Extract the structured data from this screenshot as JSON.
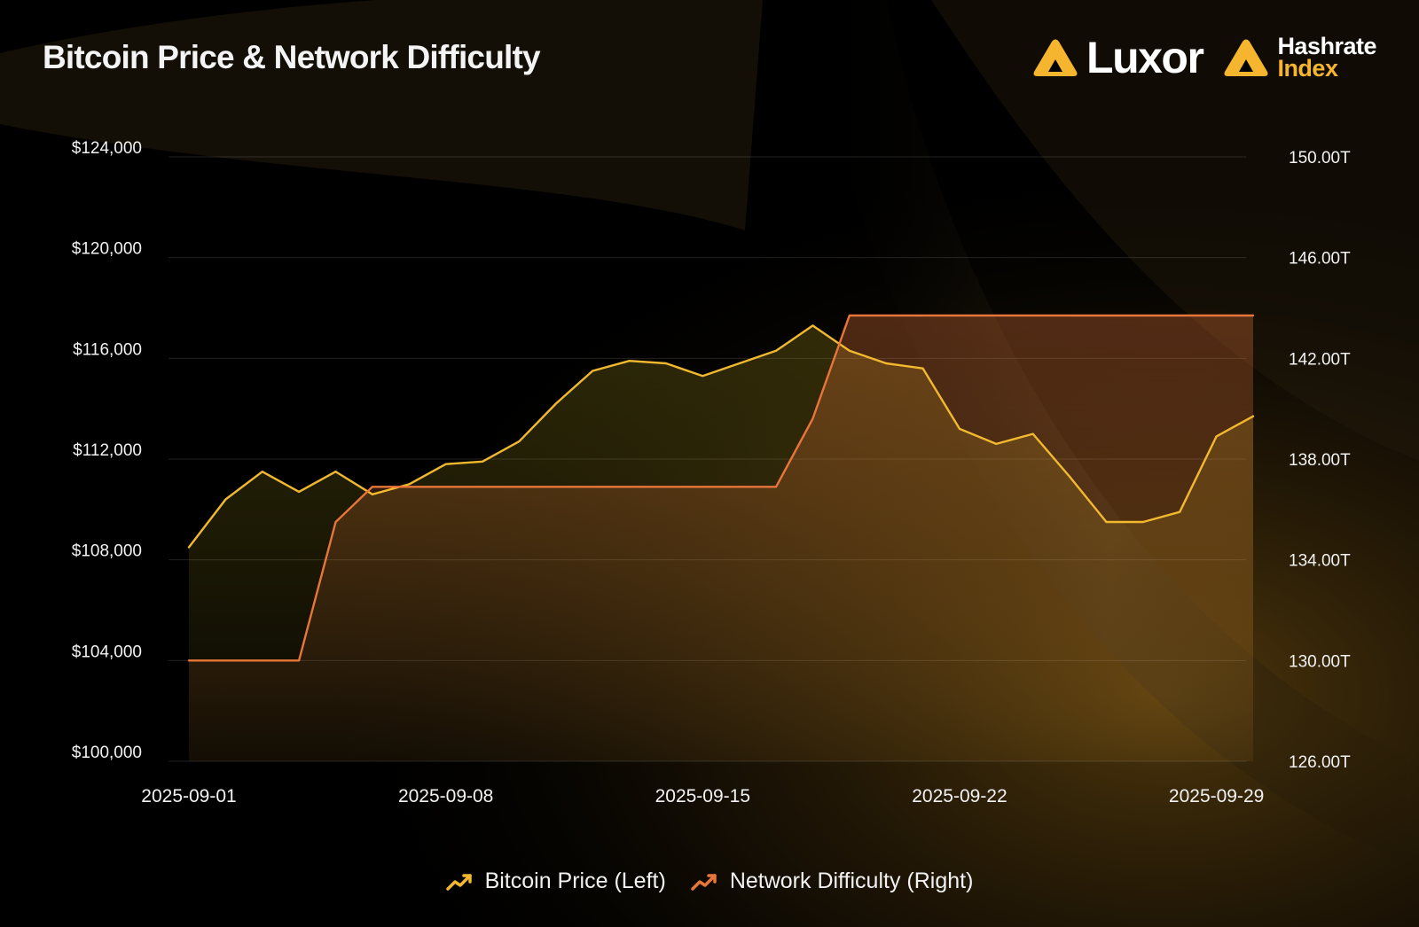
{
  "header": {
    "title": "Bitcoin Price & Network Difficulty",
    "brand_primary": "Luxor",
    "brand_secondary_line1": "Hashrate",
    "brand_secondary_line2": "Index",
    "brand_color": "#f5b52e"
  },
  "legend": [
    {
      "label": "Bitcoin Price (Left)",
      "color": "#f2b92f",
      "icon": "trend-up-icon"
    },
    {
      "label": "Network Difficulty (Right)",
      "color": "#e8763a",
      "icon": "trend-up-icon"
    }
  ],
  "chart_data": {
    "type": "line",
    "title": "Bitcoin Price & Network Difficulty",
    "xlabel": "",
    "ylabel": "",
    "x_ticks": [
      "2025-09-01",
      "2025-09-08",
      "2025-09-15",
      "2025-09-22",
      "2025-09-29"
    ],
    "x": [
      "2025-09-01",
      "2025-09-02",
      "2025-09-03",
      "2025-09-04",
      "2025-09-05",
      "2025-09-06",
      "2025-09-07",
      "2025-09-08",
      "2025-09-09",
      "2025-09-10",
      "2025-09-11",
      "2025-09-12",
      "2025-09-13",
      "2025-09-14",
      "2025-09-15",
      "2025-09-16",
      "2025-09-17",
      "2025-09-18",
      "2025-09-19",
      "2025-09-20",
      "2025-09-21",
      "2025-09-22",
      "2025-09-23",
      "2025-09-24",
      "2025-09-25",
      "2025-09-26",
      "2025-09-27",
      "2025-09-28",
      "2025-09-29",
      "2025-09-30"
    ],
    "left_axis": {
      "ylim": [
        100000,
        124000
      ],
      "ticks": [
        100000,
        104000,
        108000,
        112000,
        116000,
        120000,
        124000
      ],
      "tick_labels": [
        "$100,000",
        "$104,000",
        "$108,000",
        "$112,000",
        "$116,000",
        "$120,000",
        "$124,000"
      ]
    },
    "right_axis": {
      "ylim": [
        126,
        150
      ],
      "ticks": [
        126,
        130,
        134,
        138,
        142,
        146,
        150
      ],
      "tick_labels": [
        "126.00T",
        "130.00T",
        "134.00T",
        "138.00T",
        "142.00T",
        "146.00T",
        "150.00T"
      ]
    },
    "grid": true,
    "legend_position": "bottom-center",
    "series": [
      {
        "name": "Bitcoin Price (Left)",
        "axis": "left",
        "color": "#f2b92f",
        "values": [
          108500,
          110400,
          111500,
          110700,
          111500,
          110600,
          111000,
          111800,
          111900,
          112700,
          114200,
          115500,
          115900,
          115800,
          115300,
          115800,
          116300,
          117300,
          116300,
          115800,
          115600,
          113200,
          112600,
          113000,
          111300,
          109500,
          109500,
          109900,
          112900,
          113700
        ]
      },
      {
        "name": "Network Difficulty (Right)",
        "axis": "right",
        "color": "#e8763a",
        "values": [
          130.0,
          130.0,
          130.0,
          130.0,
          135.5,
          136.9,
          136.9,
          136.9,
          136.9,
          136.9,
          136.9,
          136.9,
          136.9,
          136.9,
          136.9,
          136.9,
          136.9,
          139.6,
          143.7,
          143.7,
          143.7,
          143.7,
          143.7,
          143.7,
          143.7,
          143.7,
          143.7,
          143.7,
          143.7,
          143.7
        ]
      }
    ]
  }
}
